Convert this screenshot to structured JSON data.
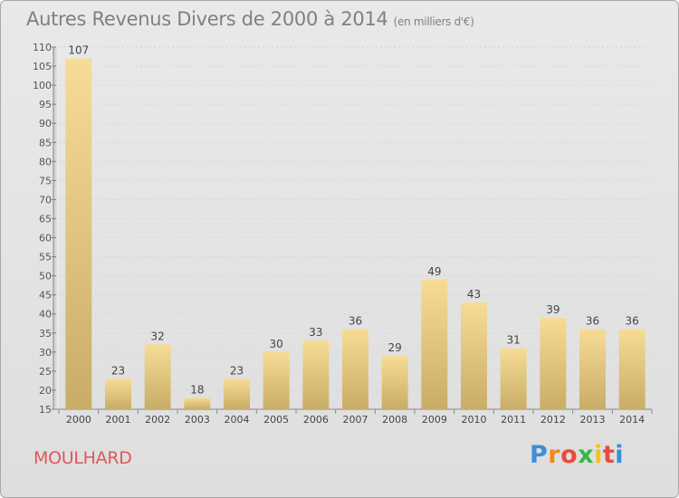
{
  "header": {
    "title": "Autres Revenus Divers de 2000 à 2014",
    "unit": "(en milliers d'€)"
  },
  "footer": {
    "commune": "MOULHARD",
    "logo": {
      "text": "Proxiti",
      "letters": [
        "P",
        "r",
        "o",
        "x",
        "i",
        "t",
        "i"
      ],
      "colors": [
        "#3d8fd6",
        "#f08a1c",
        "#e74c3c",
        "#3bb54a",
        "#f2c31c",
        "#e74c3c",
        "#3d8fd6"
      ]
    }
  },
  "chart_data": {
    "type": "bar",
    "categories": [
      "2000",
      "2001",
      "2002",
      "2003",
      "2004",
      "2005",
      "2006",
      "2007",
      "2008",
      "2009",
      "2010",
      "2011",
      "2012",
      "2013",
      "2014"
    ],
    "values": [
      107,
      23,
      32,
      18,
      23,
      30,
      33,
      36,
      29,
      49,
      43,
      31,
      39,
      36,
      36
    ],
    "data_labels": [
      "107",
      "23",
      "32",
      "18",
      "23",
      "30",
      "33",
      "36",
      "29",
      "49",
      "43",
      "31",
      "39",
      "36",
      "36"
    ],
    "title": "Autres Revenus Divers de 2000 à 2014",
    "subtitle": "(en milliers d'€)",
    "ylim": [
      15,
      110
    ],
    "yticks": [
      15,
      20,
      25,
      30,
      35,
      40,
      45,
      50,
      55,
      60,
      65,
      70,
      75,
      80,
      85,
      90,
      95,
      100,
      105,
      110
    ],
    "grid": true,
    "bar_color": "#e4c87a"
  }
}
